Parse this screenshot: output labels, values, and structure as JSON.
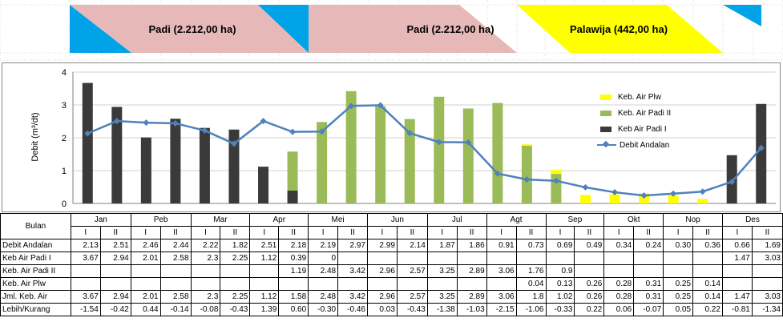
{
  "colors": {
    "cyan": "#00A2E8",
    "pink": "#E6B9B8",
    "yellow": "#FFFF00",
    "padi_ii_green": "#9BBB59",
    "padi_i_black": "#3A3A3A",
    "line_blue": "#4F81BD"
  },
  "schedule": {
    "labels": [
      "Padi (2.212,00 ha)",
      "Padi (2.212,00 ha)",
      "Palawija (442,00 ha)"
    ]
  },
  "chart_data": {
    "type": "bar",
    "ylabel": "Debit (m³/dt)",
    "ylim": [
      0,
      4
    ],
    "y_ticks": [
      "0",
      "1",
      "2",
      "3",
      "4"
    ],
    "grid": true,
    "legend_position": "right",
    "categories": [
      "Jan I",
      "Jan II",
      "Peb I",
      "Peb II",
      "Mar I",
      "Mar II",
      "Apr I",
      "Apr II",
      "Mei I",
      "Mei II",
      "Jun I",
      "Jun II",
      "Jul I",
      "Jul II",
      "Agt I",
      "Agt II",
      "Sep I",
      "Sep II",
      "Okt I",
      "Okt II",
      "Nop I",
      "Nop II",
      "Des I",
      "Des II"
    ],
    "series": [
      {
        "name": "Keb Air Padi I",
        "type": "bar",
        "values": [
          3.67,
          2.94,
          2.01,
          2.58,
          2.3,
          2.25,
          1.12,
          0.39,
          null,
          null,
          null,
          null,
          null,
          null,
          null,
          null,
          null,
          null,
          null,
          null,
          null,
          null,
          1.47,
          3.03
        ]
      },
      {
        "name": "Keb. Air Padi II",
        "type": "bar",
        "values": [
          null,
          null,
          null,
          null,
          null,
          null,
          null,
          1.19,
          2.48,
          3.42,
          2.96,
          2.57,
          3.25,
          2.89,
          3.06,
          1.76,
          0.9,
          null,
          null,
          null,
          null,
          null,
          null,
          null
        ]
      },
      {
        "name": "Keb. Air Plw",
        "type": "bar",
        "values": [
          null,
          null,
          null,
          null,
          null,
          null,
          null,
          null,
          null,
          null,
          null,
          null,
          null,
          null,
          null,
          0.04,
          0.13,
          0.26,
          0.28,
          0.31,
          0.25,
          0.14,
          null,
          null
        ]
      },
      {
        "name": "Debit Andalan",
        "type": "line",
        "values": [
          2.13,
          2.51,
          2.46,
          2.44,
          2.22,
          1.82,
          2.51,
          2.18,
          2.19,
          2.97,
          2.99,
          2.14,
          1.87,
          1.86,
          0.91,
          0.73,
          0.69,
          0.49,
          0.34,
          0.24,
          0.3,
          0.36,
          0.66,
          1.69
        ]
      }
    ],
    "legend": [
      "Keb. Air Plw",
      "Keb. Air Padi II",
      "Keb Air Padi I",
      "Debit Andalan"
    ]
  },
  "table": {
    "header_label": "Bulan",
    "months": [
      "Jan",
      "Peb",
      "Mar",
      "Apr",
      "Mei",
      "Jun",
      "Jul",
      "Agt",
      "Sep",
      "Okt",
      "Nop",
      "Des"
    ],
    "periods": [
      "I",
      "II"
    ],
    "rows": [
      {
        "label": "Debit Andalan",
        "values": [
          "2.13",
          "2.51",
          "2.46",
          "2.44",
          "2.22",
          "1.82",
          "2.51",
          "2.18",
          "2.19",
          "2.97",
          "2.99",
          "2.14",
          "1.87",
          "1.86",
          "0.91",
          "0.73",
          "0.69",
          "0.49",
          "0.34",
          "0.24",
          "0.30",
          "0.36",
          "0.66",
          "1.69"
        ]
      },
      {
        "label": "Keb Air Padi I",
        "values": [
          "3.67",
          "2.94",
          "2.01",
          "2.58",
          "2.3",
          "2.25",
          "1.12",
          "0.39",
          "0",
          "",
          "",
          "",
          "",
          "",
          "",
          "",
          "",
          "",
          "",
          "",
          "",
          "",
          "1.47",
          "3.03"
        ]
      },
      {
        "label": "Keb. Air Padi II",
        "values": [
          "",
          "",
          "",
          "",
          "",
          "",
          "",
          "1.19",
          "2.48",
          "3.42",
          "2.96",
          "2.57",
          "3.25",
          "2.89",
          "3.06",
          "1.76",
          "0.9",
          "",
          "",
          "",
          "",
          "",
          "",
          ""
        ]
      },
      {
        "label": "Keb. Air Plw",
        "values": [
          "",
          "",
          "",
          "",
          "",
          "",
          "",
          "",
          "",
          "",
          "",
          "",
          "",
          "",
          "",
          "0.04",
          "0.13",
          "0.26",
          "0.28",
          "0.31",
          "0.25",
          "0.14",
          "",
          ""
        ]
      },
      {
        "label": "Jml. Keb. Air",
        "values": [
          "3.67",
          "2.94",
          "2.01",
          "2.58",
          "2.3",
          "2.25",
          "1.12",
          "1.58",
          "2.48",
          "3.42",
          "2.96",
          "2.57",
          "3.25",
          "2.89",
          "3.06",
          "1.8",
          "1.02",
          "0.26",
          "0.28",
          "0.31",
          "0.25",
          "0.14",
          "1.47",
          "3.03"
        ]
      },
      {
        "label": "Lebih/Kurang",
        "values": [
          "-1.54",
          "-0.42",
          "0.44",
          "-0.14",
          "-0.08",
          "-0.43",
          "1.39",
          "0.60",
          "-0.30",
          "-0.46",
          "0.03",
          "-0.43",
          "-1.38",
          "-1.03",
          "-2.15",
          "-1.06",
          "-0.33",
          "0.22",
          "0.06",
          "-0.07",
          "0.05",
          "0.22",
          "-0.81",
          "-1.34"
        ]
      }
    ]
  }
}
